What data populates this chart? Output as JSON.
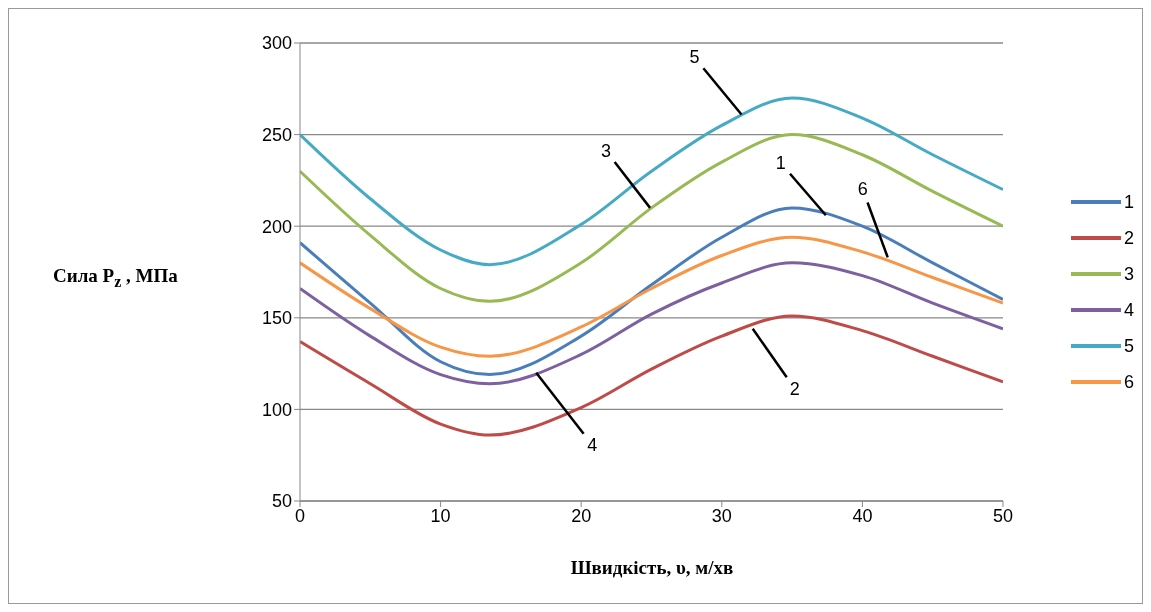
{
  "chart_data": {
    "type": "line",
    "xlabel": "Швидкість, υ, м/хв",
    "ylabel": "Сила P$_{z}$ , МПа",
    "x": [
      0,
      5,
      10,
      13.5,
      20,
      25,
      30,
      35,
      40,
      45,
      50
    ],
    "series": [
      {
        "name": "1",
        "color": "#4a7ebb",
        "values": [
          191,
          158,
          126,
          119,
          140,
          168,
          194,
          210,
          200,
          180,
          160
        ]
      },
      {
        "name": "2",
        "color": "#be4b48",
        "values": [
          137,
          114,
          92,
          86,
          101,
          122,
          140,
          151,
          143,
          129,
          115
        ]
      },
      {
        "name": "3",
        "color": "#98b954",
        "values": [
          230,
          195,
          166,
          159,
          180,
          210,
          235,
          250,
          239,
          219,
          200
        ]
      },
      {
        "name": "4",
        "color": "#7d60a0",
        "values": [
          166,
          140,
          119,
          114,
          130,
          152,
          169,
          180,
          173,
          158,
          144
        ]
      },
      {
        "name": "5",
        "color": "#46aac5",
        "values": [
          250,
          215,
          187,
          179,
          201,
          230,
          255,
          270,
          259,
          239,
          220
        ]
      },
      {
        "name": "6",
        "color": "#f79646",
        "values": [
          180,
          155,
          134,
          129,
          145,
          166,
          184,
          194,
          186,
          172,
          158
        ]
      }
    ],
    "xlim": [
      0,
      50
    ],
    "xticks": [
      0,
      10,
      20,
      30,
      40,
      50
    ],
    "ylim": [
      50,
      300
    ],
    "yticks": [
      50,
      100,
      150,
      200,
      250,
      300
    ],
    "grid": "y",
    "legend": "right",
    "marker": "none",
    "line_style": "solid",
    "annotations": [
      {
        "text": "5",
        "x": 31.4,
        "y": 261
      },
      {
        "text": "3",
        "x": 24.9,
        "y": 210
      },
      {
        "text": "1",
        "x": 37.4,
        "y": 206
      },
      {
        "text": "6",
        "x": 41.8,
        "y": 183
      },
      {
        "text": "2",
        "x": 32.2,
        "y": 144
      },
      {
        "text": "4",
        "x": 16.8,
        "y": 120
      }
    ]
  }
}
